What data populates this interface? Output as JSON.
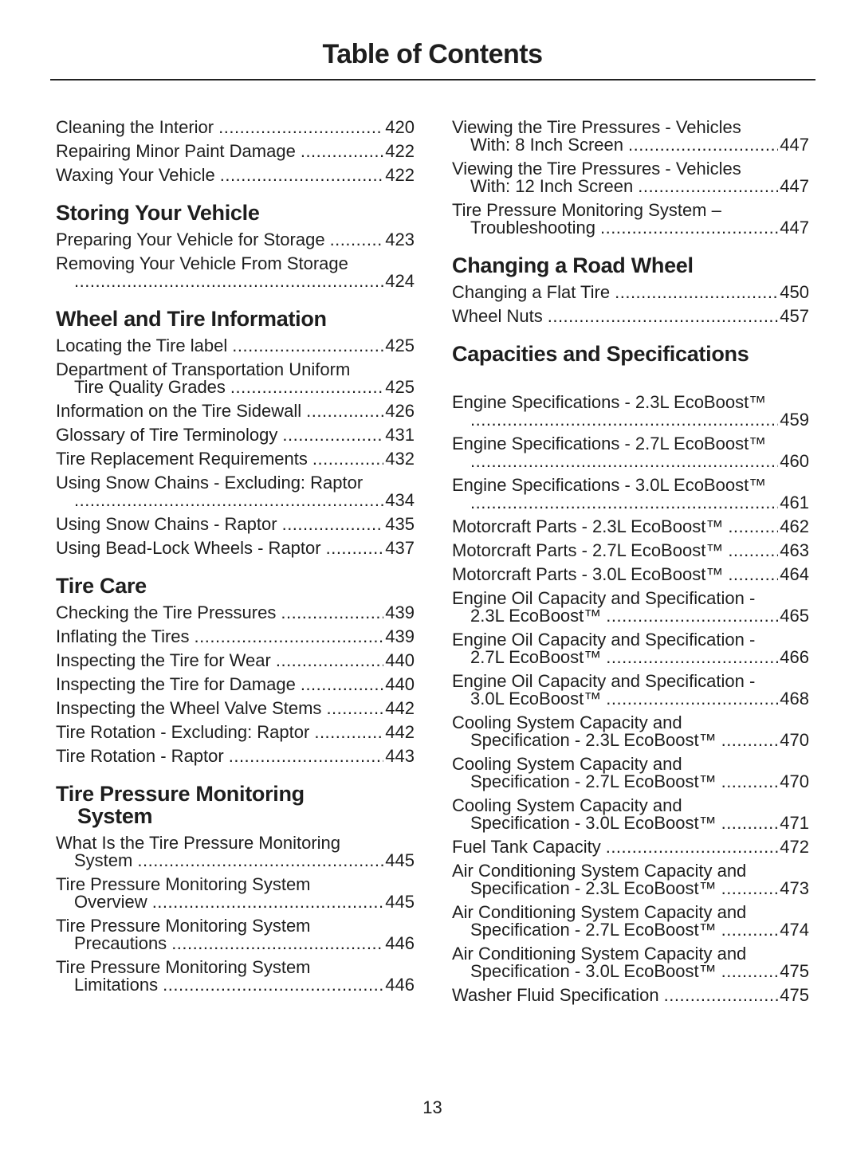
{
  "title": "Table of Contents",
  "page_number": "13",
  "columns": [
    [
      {
        "type": "entry",
        "lines": [
          "Cleaning the Interior"
        ],
        "page": "420"
      },
      {
        "type": "entry",
        "lines": [
          "Repairing Minor Paint Damage"
        ],
        "page": "422"
      },
      {
        "type": "entry",
        "lines": [
          "Waxing Your Vehicle"
        ],
        "page": "422"
      },
      {
        "type": "heading",
        "lines": [
          "Storing Your Vehicle"
        ]
      },
      {
        "type": "entry",
        "lines": [
          "Preparing Your Vehicle for Storage"
        ],
        "page": "423"
      },
      {
        "type": "entry",
        "lines": [
          "Removing Your Vehicle From Storage",
          ""
        ],
        "page": "424"
      },
      {
        "type": "heading",
        "lines": [
          "Wheel and Tire Information"
        ]
      },
      {
        "type": "entry",
        "lines": [
          "Locating the Tire label"
        ],
        "page": "425"
      },
      {
        "type": "entry",
        "lines": [
          "Department of Transportation Uniform",
          "Tire Quality Grades"
        ],
        "page": "425"
      },
      {
        "type": "entry",
        "lines": [
          "Information on the Tire Sidewall"
        ],
        "page": "426"
      },
      {
        "type": "entry",
        "lines": [
          "Glossary of Tire Terminology"
        ],
        "page": "431"
      },
      {
        "type": "entry",
        "lines": [
          "Tire Replacement Requirements"
        ],
        "page": "432"
      },
      {
        "type": "entry",
        "lines": [
          "Using Snow Chains - Excluding: Raptor",
          ""
        ],
        "page": "434"
      },
      {
        "type": "entry",
        "lines": [
          "Using Snow Chains - Raptor"
        ],
        "page": "435"
      },
      {
        "type": "entry",
        "lines": [
          "Using Bead-Lock Wheels - Raptor"
        ],
        "page": "437"
      },
      {
        "type": "heading",
        "lines": [
          "Tire Care"
        ]
      },
      {
        "type": "entry",
        "lines": [
          "Checking the Tire Pressures"
        ],
        "page": "439"
      },
      {
        "type": "entry",
        "lines": [
          "Inflating the Tires"
        ],
        "page": "439"
      },
      {
        "type": "entry",
        "lines": [
          "Inspecting the Tire for Wear"
        ],
        "page": "440"
      },
      {
        "type": "entry",
        "lines": [
          "Inspecting the Tire for Damage"
        ],
        "page": "440"
      },
      {
        "type": "entry",
        "lines": [
          "Inspecting the Wheel Valve Stems"
        ],
        "page": "442"
      },
      {
        "type": "entry",
        "lines": [
          "Tire Rotation - Excluding: Raptor"
        ],
        "page": "442"
      },
      {
        "type": "entry",
        "lines": [
          "Tire Rotation - Raptor"
        ],
        "page": "443"
      },
      {
        "type": "heading",
        "lines": [
          "Tire Pressure Monitoring",
          "System"
        ]
      },
      {
        "type": "entry",
        "lines": [
          "What Is the Tire Pressure Monitoring",
          "System"
        ],
        "page": "445"
      },
      {
        "type": "entry",
        "lines": [
          "Tire Pressure Monitoring System",
          "Overview"
        ],
        "page": "445"
      },
      {
        "type": "entry",
        "lines": [
          "Tire Pressure Monitoring System",
          "Precautions"
        ],
        "page": "446"
      },
      {
        "type": "entry",
        "lines": [
          "Tire Pressure Monitoring System",
          "Limitations"
        ],
        "page": "446"
      }
    ],
    [
      {
        "type": "entry",
        "lines": [
          "Viewing the Tire Pressures - Vehicles",
          "With: 8 Inch Screen"
        ],
        "page": "447"
      },
      {
        "type": "entry",
        "lines": [
          "Viewing the Tire Pressures - Vehicles",
          "With: 12 Inch Screen"
        ],
        "page": "447"
      },
      {
        "type": "entry",
        "lines": [
          "Tire Pressure Monitoring System –",
          "Troubleshooting"
        ],
        "page": "447"
      },
      {
        "type": "heading",
        "lines": [
          "Changing a Road Wheel"
        ]
      },
      {
        "type": "entry",
        "lines": [
          "Changing a Flat Tire"
        ],
        "page": "450"
      },
      {
        "type": "entry",
        "lines": [
          "Wheel Nuts"
        ],
        "page": "457"
      },
      {
        "type": "heading",
        "lines": [
          "Capacities and Specifications"
        ],
        "extra": true
      },
      {
        "type": "entry",
        "lines": [
          "Engine Specifications - 2.3L EcoBoost™",
          ""
        ],
        "page": "459"
      },
      {
        "type": "entry",
        "lines": [
          "Engine Specifications - 2.7L EcoBoost™",
          ""
        ],
        "page": "460"
      },
      {
        "type": "entry",
        "lines": [
          "Engine Specifications - 3.0L EcoBoost™",
          ""
        ],
        "page": "461"
      },
      {
        "type": "entry",
        "lines": [
          "Motorcraft Parts - 2.3L EcoBoost™"
        ],
        "page": "462"
      },
      {
        "type": "entry",
        "lines": [
          "Motorcraft Parts - 2.7L EcoBoost™"
        ],
        "page": "463"
      },
      {
        "type": "entry",
        "lines": [
          "Motorcraft Parts - 3.0L EcoBoost™"
        ],
        "page": "464"
      },
      {
        "type": "entry",
        "lines": [
          "Engine Oil Capacity and Specification -",
          "2.3L EcoBoost™"
        ],
        "page": "465"
      },
      {
        "type": "entry",
        "lines": [
          "Engine Oil Capacity and Specification -",
          "2.7L EcoBoost™"
        ],
        "page": "466"
      },
      {
        "type": "entry",
        "lines": [
          "Engine Oil Capacity and Specification -",
          "3.0L EcoBoost™"
        ],
        "page": "468"
      },
      {
        "type": "entry",
        "lines": [
          "Cooling System Capacity and",
          "Specification - 2.3L EcoBoost™"
        ],
        "page": "470"
      },
      {
        "type": "entry",
        "lines": [
          "Cooling System Capacity and",
          "Specification - 2.7L EcoBoost™"
        ],
        "page": "470"
      },
      {
        "type": "entry",
        "lines": [
          "Cooling System Capacity and",
          "Specification - 3.0L EcoBoost™"
        ],
        "page": "471"
      },
      {
        "type": "entry",
        "lines": [
          "Fuel Tank Capacity"
        ],
        "page": "472"
      },
      {
        "type": "entry",
        "lines": [
          "Air Conditioning System Capacity and",
          "Specification - 2.3L EcoBoost™"
        ],
        "page": "473"
      },
      {
        "type": "entry",
        "lines": [
          "Air Conditioning System Capacity and",
          "Specification - 2.7L EcoBoost™"
        ],
        "page": "474"
      },
      {
        "type": "entry",
        "lines": [
          "Air Conditioning System Capacity and",
          "Specification - 3.0L EcoBoost™"
        ],
        "page": "475"
      },
      {
        "type": "entry",
        "lines": [
          "Washer Fluid Specification"
        ],
        "page": "475"
      }
    ]
  ]
}
